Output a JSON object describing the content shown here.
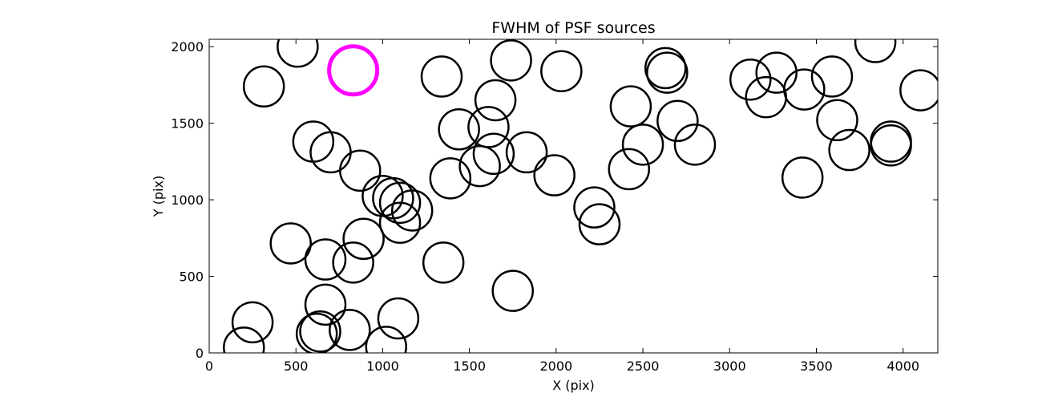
{
  "chart_data": {
    "type": "scatter",
    "title": "FWHM of PSF sources",
    "xlabel": "X (pix)",
    "ylabel": "Y (pix)",
    "xlim": [
      0,
      4200
    ],
    "ylim": [
      0,
      2048
    ],
    "xticks": [
      "0",
      "500",
      "1000",
      "1500",
      "2000",
      "2500",
      "3000",
      "3500",
      "4000"
    ],
    "yticks": [
      "0",
      "500",
      "1000",
      "1500",
      "2000"
    ],
    "grid": false,
    "colors": {
      "source": "#000000",
      "highlight": "#ff00ff"
    },
    "highlight": {
      "x": 830,
      "y": 1845
    },
    "points": [
      {
        "x": 510,
        "y": 2000
      },
      {
        "x": 315,
        "y": 1740
      },
      {
        "x": 1340,
        "y": 1805
      },
      {
        "x": 1740,
        "y": 1910
      },
      {
        "x": 2030,
        "y": 1840
      },
      {
        "x": 2630,
        "y": 1860
      },
      {
        "x": 2640,
        "y": 1830
      },
      {
        "x": 3120,
        "y": 1785
      },
      {
        "x": 3270,
        "y": 1830
      },
      {
        "x": 3210,
        "y": 1670
      },
      {
        "x": 3430,
        "y": 1720
      },
      {
        "x": 3590,
        "y": 1805
      },
      {
        "x": 3840,
        "y": 2030
      },
      {
        "x": 4100,
        "y": 1715
      },
      {
        "x": 1650,
        "y": 1650
      },
      {
        "x": 2430,
        "y": 1610
      },
      {
        "x": 2700,
        "y": 1515
      },
      {
        "x": 3620,
        "y": 1520
      },
      {
        "x": 1440,
        "y": 1460
      },
      {
        "x": 1610,
        "y": 1475
      },
      {
        "x": 2500,
        "y": 1360
      },
      {
        "x": 2800,
        "y": 1360
      },
      {
        "x": 3930,
        "y": 1380
      },
      {
        "x": 3930,
        "y": 1355
      },
      {
        "x": 3690,
        "y": 1325
      },
      {
        "x": 600,
        "y": 1380
      },
      {
        "x": 700,
        "y": 1310
      },
      {
        "x": 1640,
        "y": 1300
      },
      {
        "x": 1830,
        "y": 1310
      },
      {
        "x": 1560,
        "y": 1220
      },
      {
        "x": 870,
        "y": 1190
      },
      {
        "x": 1390,
        "y": 1140
      },
      {
        "x": 1990,
        "y": 1160
      },
      {
        "x": 2420,
        "y": 1200
      },
      {
        "x": 3420,
        "y": 1145
      },
      {
        "x": 1000,
        "y": 1025
      },
      {
        "x": 1060,
        "y": 1010
      },
      {
        "x": 1100,
        "y": 980
      },
      {
        "x": 1170,
        "y": 930
      },
      {
        "x": 1100,
        "y": 850
      },
      {
        "x": 2220,
        "y": 950
      },
      {
        "x": 2250,
        "y": 840
      },
      {
        "x": 470,
        "y": 715
      },
      {
        "x": 890,
        "y": 745
      },
      {
        "x": 670,
        "y": 610
      },
      {
        "x": 830,
        "y": 590
      },
      {
        "x": 1350,
        "y": 590
      },
      {
        "x": 1750,
        "y": 405
      },
      {
        "x": 670,
        "y": 315
      },
      {
        "x": 250,
        "y": 200
      },
      {
        "x": 1090,
        "y": 225
      },
      {
        "x": 620,
        "y": 125
      },
      {
        "x": 640,
        "y": 140
      },
      {
        "x": 810,
        "y": 150
      },
      {
        "x": 200,
        "y": 35
      },
      {
        "x": 1020,
        "y": 40
      }
    ]
  }
}
